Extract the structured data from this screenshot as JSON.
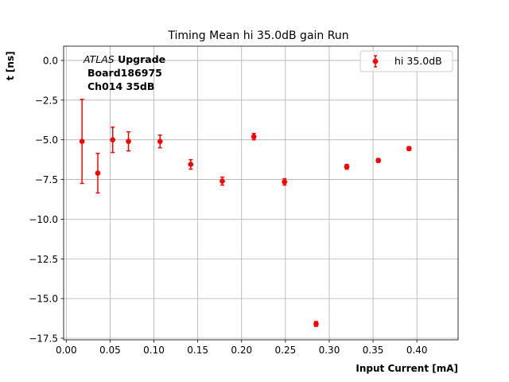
{
  "chart_data": {
    "type": "scatter",
    "title": "Timing Mean hi 35.0dB gain Run",
    "xlabel": "Input Current [mA]",
    "ylabel": "t [ns]",
    "xlim": [
      -0.003,
      0.447
    ],
    "ylim": [
      -17.6,
      0.9
    ],
    "grid": true,
    "legend_placement": "top-right",
    "color": "#ff0000",
    "x_ticks": [
      0.0,
      0.05,
      0.1,
      0.15,
      0.2,
      0.25,
      0.3,
      0.35,
      0.4
    ],
    "x_tick_labels": [
      "0.00",
      "0.05",
      "0.10",
      "0.15",
      "0.20",
      "0.25",
      "0.30",
      "0.35",
      "0.40"
    ],
    "y_ticks": [
      0.0,
      -2.5,
      -5.0,
      -7.5,
      -10.0,
      -12.5,
      -15.0,
      -17.5
    ],
    "y_tick_labels": [
      "0.0",
      "−2.5",
      "−5.0",
      "−7.5",
      "−10.0",
      "−12.5",
      "−15.0",
      "−17.5"
    ],
    "annotation": {
      "line1_italic": "ATLAS",
      "line1_bold": " Upgrade",
      "line2": "Board186975",
      "line3": "Ch014 35dB"
    },
    "series": [
      {
        "name": "hi 35.0dB",
        "x": [
          0.018,
          0.036,
          0.053,
          0.071,
          0.107,
          0.142,
          0.178,
          0.214,
          0.249,
          0.285,
          0.32,
          0.356,
          0.391
        ],
        "y": [
          -5.1,
          -7.1,
          -5.0,
          -5.1,
          -5.1,
          -6.55,
          -7.6,
          -4.8,
          -7.65,
          -16.6,
          -6.7,
          -6.3,
          -5.55
        ],
        "yerr": [
          2.65,
          1.25,
          0.8,
          0.6,
          0.4,
          0.3,
          0.25,
          0.2,
          0.2,
          0.15,
          0.15,
          0.12,
          0.12
        ]
      }
    ]
  }
}
